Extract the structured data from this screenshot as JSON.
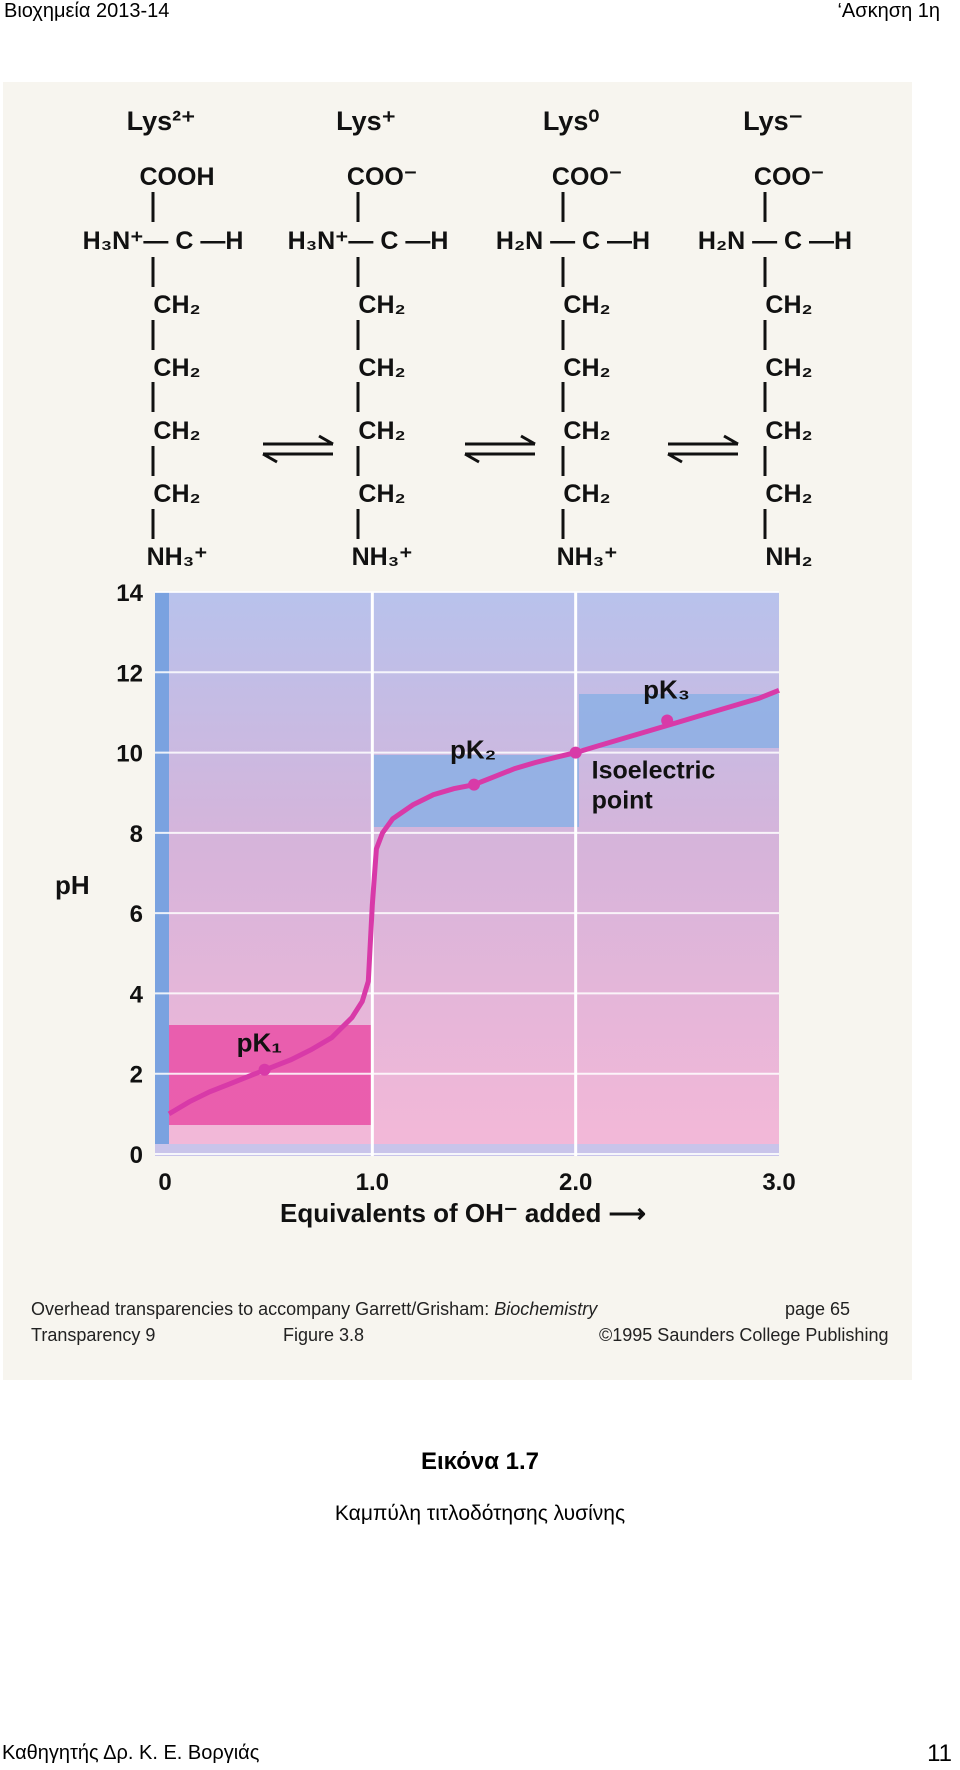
{
  "header": {
    "left": "Βιοχημεία 2013-14",
    "right": "‘Ασκηση 1η"
  },
  "species": [
    {
      "name": "Lys²⁺",
      "carboxyl": "COOH",
      "alpha_amino": "H₃N⁺— C —H",
      "chain": [
        "CH₂",
        "CH₂",
        "CH₂",
        "CH₂"
      ],
      "side": "NH₃⁺"
    },
    {
      "name": "Lys⁺",
      "carboxyl": "COO⁻",
      "alpha_amino": "H₃N⁺— C —H",
      "chain": [
        "CH₂",
        "CH₂",
        "CH₂",
        "CH₂"
      ],
      "side": "NH₃⁺"
    },
    {
      "name": "Lys⁰",
      "carboxyl": "COO⁻",
      "alpha_amino": "H₂N — C —H",
      "chain": [
        "CH₂",
        "CH₂",
        "CH₂",
        "CH₂"
      ],
      "side": "NH₃⁺"
    },
    {
      "name": "Lys⁻",
      "carboxyl": "COO⁻",
      "alpha_amino": "H₂N — C —H",
      "chain": [
        "CH₂",
        "CH₂",
        "CH₂",
        "CH₂"
      ],
      "side": "NH₂"
    }
  ],
  "chart_data": {
    "type": "line",
    "ylabel": "pH",
    "xlabel": "Equivalents of OH⁻ added ⟶",
    "xlim": [
      0,
      3
    ],
    "ylim": [
      0,
      14
    ],
    "x_ticks": [
      "0",
      "1.0",
      "2.0",
      "3.0"
    ],
    "y_ticks": [
      "0",
      "2",
      "4",
      "6",
      "8",
      "10",
      "12",
      "14"
    ],
    "grid": true,
    "series": [
      {
        "x": [
          0,
          0.1,
          0.2,
          0.3,
          0.4,
          0.5,
          0.6,
          0.7,
          0.8,
          0.9,
          0.95,
          0.98,
          1.0,
          1.02,
          1.05,
          1.1,
          1.2,
          1.3,
          1.4,
          1.5,
          1.6,
          1.7,
          1.8,
          1.9,
          2.0,
          2.1,
          2.2,
          2.3,
          2.4,
          2.5,
          2.6,
          2.7,
          2.8,
          2.9,
          3.0
        ],
        "y": [
          1.0,
          1.3,
          1.55,
          1.75,
          1.95,
          2.15,
          2.35,
          2.6,
          2.9,
          3.4,
          3.8,
          4.3,
          6.2,
          7.6,
          8.0,
          8.35,
          8.7,
          8.95,
          9.1,
          9.2,
          9.4,
          9.6,
          9.75,
          9.88,
          10.0,
          10.15,
          10.3,
          10.45,
          10.6,
          10.75,
          10.9,
          11.05,
          11.2,
          11.35,
          11.55
        ]
      }
    ],
    "annotations": [
      {
        "text": "pK₁",
        "x": 0.47,
        "y": 2.1
      },
      {
        "text": "pK₂",
        "x": 1.5,
        "y": 9.2
      },
      {
        "text": "pK₃",
        "x": 2.45,
        "y": 10.8
      },
      {
        "text": "Isoelectric point",
        "x": 2.0,
        "y": 10.0
      }
    ]
  },
  "credits": {
    "line1_left": "Overhead transparencies to accompany Garrett/Grisham: ",
    "line1_italic": "Biochemistry",
    "line1_right": "page  65",
    "line2_left": "Transparency 9",
    "line2_mid": "Figure  3.8",
    "line2_right": "©1995 Saunders College Publishing"
  },
  "caption": {
    "title": "Εικόνα 1.7",
    "subtitle": "Καμπύλη τιτλοδότησης λυσίνης"
  },
  "footer": {
    "left": "Καθηγητής Δρ. Κ. Ε. Βοργιάς",
    "page": "11"
  }
}
